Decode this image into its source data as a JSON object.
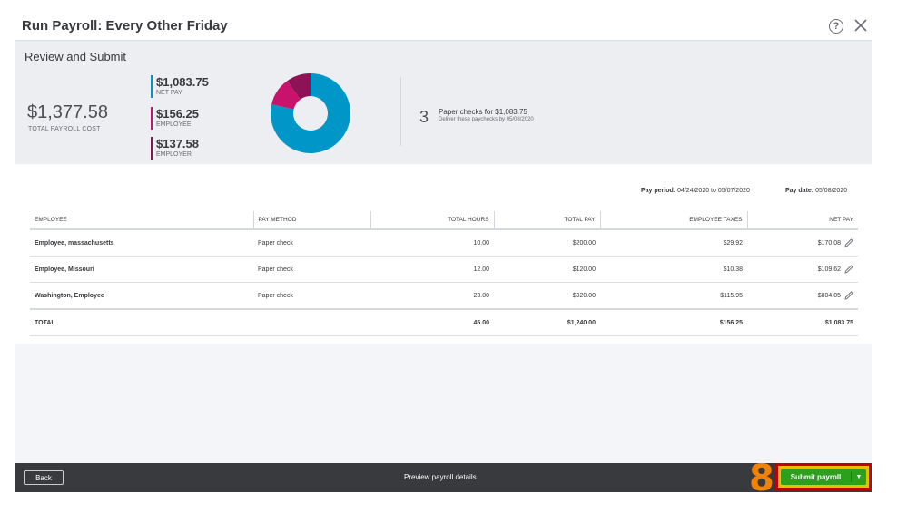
{
  "dialog": {
    "title": "Run Payroll: Every Other Friday",
    "help_icon": "?"
  },
  "summary": {
    "section_title": "Review and Submit",
    "total_cost": "$1,377.58",
    "total_cost_label": "TOTAL PAYROLL COST",
    "net_pay": "$1,083.75",
    "net_pay_label": "NET PAY",
    "employee": "$156.25",
    "employee_label": "EMPLOYEE",
    "employer": "$137.58",
    "employer_label": "EMPLOYER",
    "checks_count": "3",
    "checks_text": "Paper checks for $1,083.75",
    "checks_sub": "Deliver these paychecks by 05/08/2020",
    "colors": {
      "net_pay": "#0097c8",
      "employee": "#c9126b",
      "employer": "#8d1356"
    }
  },
  "chart_data": {
    "type": "pie",
    "donut": true,
    "slices": [
      {
        "label": "NET PAY",
        "value": 1083.75,
        "color": "#0097c8"
      },
      {
        "label": "EMPLOYEE",
        "value": 156.25,
        "color": "#c9126b"
      },
      {
        "label": "EMPLOYER",
        "value": 137.58,
        "color": "#8d1356"
      }
    ]
  },
  "pay_period": {
    "period_label": "Pay period:",
    "period_value": "04/24/2020 to 05/07/2020",
    "date_label": "Pay date:",
    "date_value": "05/08/2020"
  },
  "table": {
    "columns": [
      "EMPLOYEE",
      "PAY METHOD",
      "TOTAL HOURS",
      "TOTAL PAY",
      "EMPLOYEE TAXES",
      "NET PAY"
    ],
    "rows": [
      [
        "Employee, massachusetts",
        "Paper check",
        "10.00",
        "$200.00",
        "$29.92",
        "$170.08"
      ],
      [
        "Employee, Missouri",
        "Paper check",
        "12.00",
        "$120.00",
        "$10.38",
        "$109.62"
      ],
      [
        "Washington, Employee",
        "Paper check",
        "23.00",
        "$920.00",
        "$115.95",
        "$804.05"
      ]
    ],
    "total": [
      "TOTAL",
      "",
      "45.00",
      "$1,240.00",
      "$156.25",
      "$1,083.75"
    ]
  },
  "footer": {
    "back_label": "Back",
    "preview_label": "Preview payroll details",
    "submit_label": "Submit payroll",
    "submit_arrow": "▼"
  },
  "annotation": {
    "step_number": "8"
  }
}
